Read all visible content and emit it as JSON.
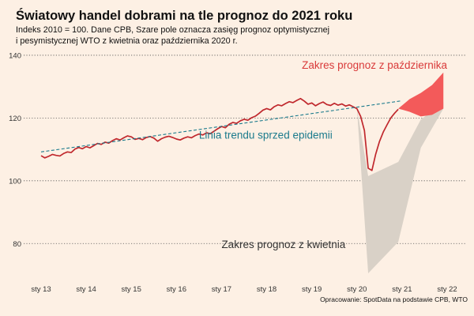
{
  "chart_data": {
    "type": "line",
    "title": "Światowy handel dobrami na tle prognoz do 2021 roku",
    "subtitle": "Indeks 2010 = 100. Dane CPB, Szare pole oznacza zasięg prognoz optymistycznej i pesymistycznej WTO z kwietnia oraz października 2020 r.",
    "caption": "Opracowanie: SpotData na podstawie CPB, WTO",
    "xlabel": "",
    "ylabel": "",
    "x_ticks": [
      "sty 13",
      "sty 14",
      "sty 15",
      "sty 16",
      "sty 17",
      "sty 18",
      "sty 19",
      "sty 20",
      "sty 21",
      "sty 22"
    ],
    "x_range": [
      "2013-01",
      "2022-01"
    ],
    "ylim": [
      70,
      142
    ],
    "y_ticks": [
      80,
      100,
      120,
      140
    ],
    "grid": "horizontal dotted",
    "series": [
      {
        "color": "#c0282d",
        "style": "solid",
        "points": [
          [
            "2013-01",
            108.0
          ],
          [
            "2013-02",
            107.3
          ],
          [
            "2013-03",
            107.8
          ],
          [
            "2013-04",
            108.4
          ],
          [
            "2013-05",
            108.1
          ],
          [
            "2013-06",
            107.9
          ],
          [
            "2013-07",
            108.7
          ],
          [
            "2013-08",
            109.2
          ],
          [
            "2013-09",
            109.0
          ],
          [
            "2013-10",
            110.1
          ],
          [
            "2013-11",
            110.6
          ],
          [
            "2013-12",
            110.2
          ],
          [
            "2014-01",
            110.9
          ],
          [
            "2014-02",
            110.5
          ],
          [
            "2014-03",
            111.2
          ],
          [
            "2014-04",
            111.9
          ],
          [
            "2014-05",
            111.6
          ],
          [
            "2014-06",
            112.3
          ],
          [
            "2014-07",
            112.0
          ],
          [
            "2014-08",
            112.8
          ],
          [
            "2014-09",
            113.4
          ],
          [
            "2014-10",
            113.0
          ],
          [
            "2014-11",
            113.7
          ],
          [
            "2014-12",
            114.3
          ],
          [
            "2015-01",
            114.0
          ],
          [
            "2015-02",
            113.2
          ],
          [
            "2015-03",
            113.5
          ],
          [
            "2015-04",
            113.1
          ],
          [
            "2015-05",
            113.8
          ],
          [
            "2015-06",
            114.1
          ],
          [
            "2015-07",
            113.6
          ],
          [
            "2015-08",
            112.6
          ],
          [
            "2015-09",
            113.4
          ],
          [
            "2015-10",
            113.9
          ],
          [
            "2015-11",
            114.2
          ],
          [
            "2015-12",
            113.8
          ],
          [
            "2016-01",
            113.3
          ],
          [
            "2016-02",
            113.0
          ],
          [
            "2016-03",
            113.6
          ],
          [
            "2016-04",
            114.0
          ],
          [
            "2016-05",
            113.7
          ],
          [
            "2016-06",
            114.4
          ],
          [
            "2016-07",
            114.9
          ],
          [
            "2016-08",
            114.6
          ],
          [
            "2016-09",
            115.3
          ],
          [
            "2016-10",
            115.0
          ],
          [
            "2016-11",
            115.8
          ],
          [
            "2016-12",
            116.6
          ],
          [
            "2017-01",
            117.3
          ],
          [
            "2017-02",
            116.9
          ],
          [
            "2017-03",
            118.0
          ],
          [
            "2017-04",
            118.6
          ],
          [
            "2017-05",
            118.3
          ],
          [
            "2017-06",
            119.1
          ],
          [
            "2017-07",
            119.6
          ],
          [
            "2017-08",
            119.3
          ],
          [
            "2017-09",
            120.1
          ],
          [
            "2017-10",
            120.6
          ],
          [
            "2017-11",
            121.5
          ],
          [
            "2017-12",
            122.5
          ],
          [
            "2018-01",
            123.0
          ],
          [
            "2018-02",
            122.6
          ],
          [
            "2018-03",
            123.6
          ],
          [
            "2018-04",
            124.2
          ],
          [
            "2018-05",
            123.9
          ],
          [
            "2018-06",
            124.6
          ],
          [
            "2018-07",
            125.2
          ],
          [
            "2018-08",
            124.9
          ],
          [
            "2018-09",
            125.6
          ],
          [
            "2018-10",
            126.2
          ],
          [
            "2018-11",
            125.4
          ],
          [
            "2018-12",
            124.4
          ],
          [
            "2019-01",
            124.8
          ],
          [
            "2019-02",
            123.9
          ],
          [
            "2019-03",
            124.6
          ],
          [
            "2019-04",
            125.1
          ],
          [
            "2019-05",
            124.3
          ],
          [
            "2019-06",
            124.0
          ],
          [
            "2019-07",
            124.7
          ],
          [
            "2019-08",
            124.1
          ],
          [
            "2019-09",
            124.5
          ],
          [
            "2019-10",
            123.8
          ],
          [
            "2019-11",
            124.2
          ],
          [
            "2019-12",
            123.6
          ],
          [
            "2020-01",
            123.0
          ],
          [
            "2020-02",
            120.5
          ],
          [
            "2020-03",
            116.0
          ],
          [
            "2020-04",
            104.0
          ],
          [
            "2020-05",
            103.3
          ],
          [
            "2020-06",
            108.5
          ],
          [
            "2020-07",
            112.5
          ],
          [
            "2020-08",
            115.5
          ],
          [
            "2020-09",
            117.8
          ],
          [
            "2020-10",
            120.0
          ],
          [
            "2020-11",
            121.5
          ],
          [
            "2020-12",
            122.8
          ]
        ]
      },
      {
        "color": "#1a7a8c",
        "style": "dashed",
        "points": [
          [
            "2013-01",
            109.2
          ],
          [
            "2021-01",
            125.5
          ]
        ]
      }
    ],
    "bands": [
      {
        "color": "#d9d1c7",
        "upper": [
          [
            "2020-01",
            123.2
          ],
          [
            "2020-04",
            101.5
          ],
          [
            "2020-12",
            106.0
          ],
          [
            "2021-06",
            119.5
          ],
          [
            "2021-12",
            125.0
          ]
        ],
        "lower": [
          [
            "2020-01",
            123.2
          ],
          [
            "2020-04",
            70.5
          ],
          [
            "2020-12",
            80.5
          ],
          [
            "2021-06",
            110.5
          ],
          [
            "2021-12",
            123.0
          ]
        ]
      },
      {
        "color": "#f35a5a",
        "upper": [
          [
            "2020-12",
            123.0
          ],
          [
            "2021-03",
            126.0
          ],
          [
            "2021-06",
            128.0
          ],
          [
            "2021-09",
            130.5
          ],
          [
            "2021-12",
            134.5
          ]
        ],
        "lower": [
          [
            "2020-12",
            123.0
          ],
          [
            "2021-03",
            122.0
          ],
          [
            "2021-06",
            120.5
          ],
          [
            "2021-09",
            121.0
          ],
          [
            "2021-12",
            123.0
          ]
        ]
      }
    ],
    "annotations": [
      {
        "text": "Zakres prognoz z października",
        "color": "#d93a3a",
        "x": "2022-01",
        "y": 135.7,
        "anchor": "end"
      },
      {
        "text": "Linia trendu sprzed epidemii",
        "color": "#1a7a8c",
        "x": "2016-07",
        "y": 113.4,
        "anchor": "start"
      },
      {
        "text": "Zakres prognoz z kwietnia",
        "color": "#333333",
        "x": "2017-01",
        "y": 78.5,
        "anchor": "start"
      }
    ]
  }
}
